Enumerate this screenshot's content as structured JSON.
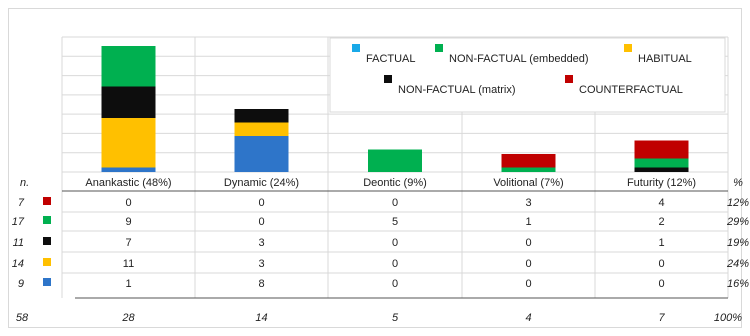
{
  "chart_data": {
    "type": "bar",
    "stacked": true,
    "categories": [
      "Anankastic (48%)",
      "Dynamic (24%)",
      "Deontic (9%)",
      "Volitional (7%)",
      "Futurity (12%)"
    ],
    "series": [
      {
        "name": "FACTUAL",
        "color": "#2e75c9",
        "legend_color": "#19a9e8",
        "values": [
          1,
          8,
          0,
          0,
          0
        ]
      },
      {
        "name": "HABITUAL",
        "color": "#ffc000",
        "values": [
          11,
          3,
          0,
          0,
          0
        ]
      },
      {
        "name": "NON-FACTUAL (matrix)",
        "color": "#0d0d0d",
        "values": [
          7,
          3,
          0,
          0,
          1
        ]
      },
      {
        "name": "NON-FACTUAL (embedded)",
        "color": "#00b050",
        "values": [
          9,
          0,
          5,
          1,
          2
        ]
      },
      {
        "name": "COUNTERFACTUAL",
        "color": "#c00000",
        "values": [
          0,
          0,
          0,
          3,
          4
        ]
      }
    ],
    "legend_order": [
      "FACTUAL",
      "NON-FACTUAL (embedded)",
      "HABITUAL",
      "NON-FACTUAL (matrix)",
      "COUNTERFACTUAL"
    ],
    "legend_position": "top-right",
    "ylim": [
      0,
      28
    ],
    "grid": true
  },
  "table": {
    "n_header": "n.",
    "pct_header": "%",
    "rows": [
      {
        "n": "7",
        "color": "#c00000",
        "values": [
          "0",
          "0",
          "0",
          "3",
          "4"
        ],
        "pct": "12%"
      },
      {
        "n": "17",
        "color": "#00b050",
        "values": [
          "9",
          "0",
          "5",
          "1",
          "2"
        ],
        "pct": "29%"
      },
      {
        "n": "11",
        "color": "#0d0d0d",
        "values": [
          "7",
          "3",
          "0",
          "0",
          "1"
        ],
        "pct": "19%"
      },
      {
        "n": "14",
        "color": "#ffc000",
        "values": [
          "11",
          "3",
          "0",
          "0",
          "0"
        ],
        "pct": "24%"
      },
      {
        "n": "9",
        "color": "#2e75c9",
        "values": [
          "1",
          "8",
          "0",
          "0",
          "0"
        ],
        "pct": "16%"
      }
    ],
    "totals": {
      "n": "58",
      "values": [
        "28",
        "14",
        "5",
        "4",
        "7"
      ],
      "pct": "100%"
    }
  }
}
